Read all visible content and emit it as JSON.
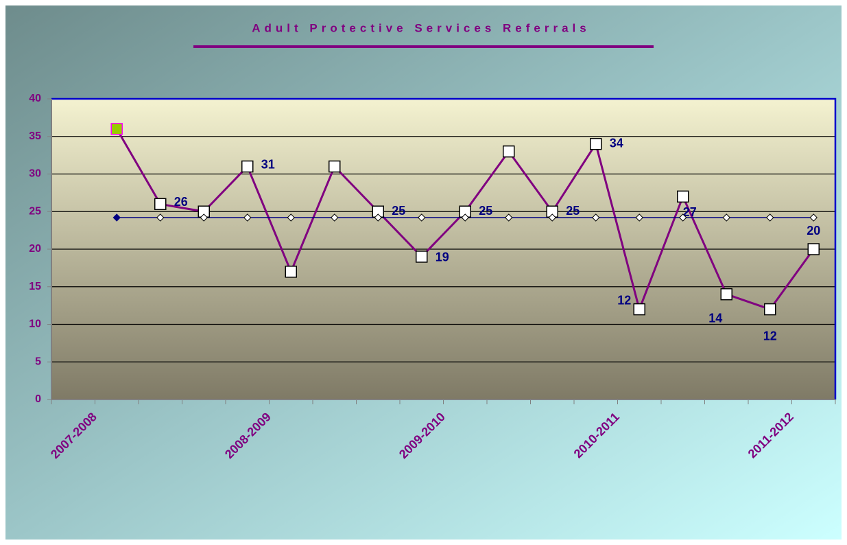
{
  "chart_data": {
    "type": "line",
    "title": "Adult Protective Services Referrals",
    "categories": [
      "2007-2008",
      null,
      null,
      null,
      "2008-2009",
      null,
      null,
      null,
      "2009-2010",
      null,
      null,
      null,
      "2010-2011",
      null,
      null,
      null,
      "2011-2012",
      null
    ],
    "series": [
      {
        "color": "#800080",
        "values": [
          null,
          36,
          26,
          25,
          31,
          17,
          31,
          25,
          19,
          25,
          33,
          25,
          34,
          12,
          27,
          14,
          12,
          20
        ],
        "value_labels": [
          null,
          null,
          "26",
          null,
          "31",
          null,
          null,
          "25",
          "19",
          "25",
          null,
          "25",
          "34",
          "12",
          "27",
          "14",
          "12",
          "20"
        ]
      },
      {
        "color": "#000080",
        "values": [
          null,
          24.2,
          24.2,
          24.2,
          24.2,
          24.2,
          24.2,
          24.2,
          24.2,
          24.2,
          24.2,
          24.2,
          24.2,
          24.2,
          24.2,
          24.2,
          24.2,
          24.2
        ]
      }
    ],
    "ylim": [
      0,
      40
    ],
    "yticks": [
      0,
      5,
      10,
      15,
      20,
      25,
      30,
      35,
      40
    ],
    "grid": true
  }
}
